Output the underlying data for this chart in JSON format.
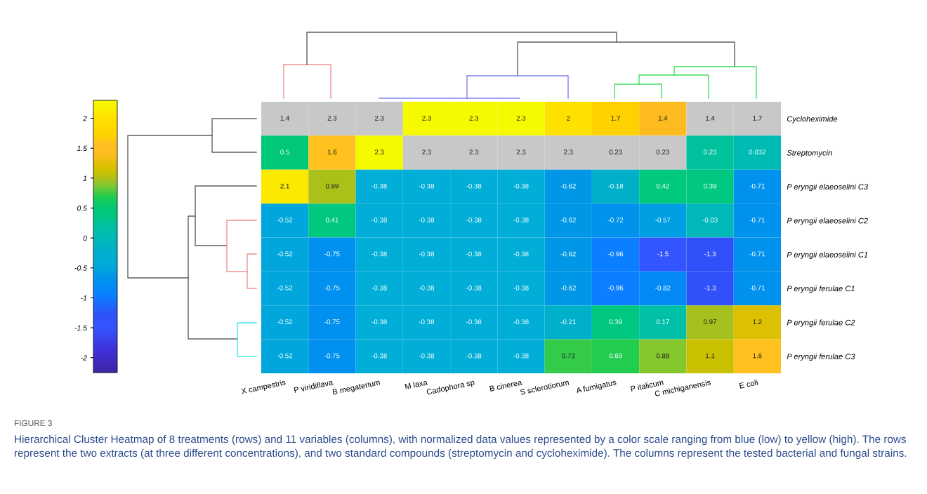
{
  "chart_data": {
    "type": "heatmap",
    "categories": [
      "X campestris",
      "P viridiflava",
      "B megaterium",
      "M laxa",
      "Cadophora sp",
      "B cinerea",
      "S sclerotiorum",
      "A fumigatus",
      "P italicum",
      "C michiganensis",
      "E coli"
    ],
    "y_categories": [
      "Cycloheximide",
      "Streptomycin",
      "P eryngii elaeoselini C3",
      "P eryngii elaeoselini C2",
      "P eryngii elaeoselini C1",
      "P eryngii ferulae C1",
      "P eryngii ferulae C2",
      "P eryngii ferulae C3"
    ],
    "cells": [
      [
        null,
        null,
        null,
        2.3,
        2.3,
        2.3,
        2,
        1.7,
        1.4,
        null,
        null
      ],
      [
        0.5,
        1.6,
        2.3,
        null,
        null,
        null,
        null,
        null,
        null,
        0.23,
        0.032
      ],
      [
        2.1,
        0.99,
        -0.38,
        -0.38,
        -0.38,
        -0.38,
        -0.62,
        -0.18,
        0.42,
        0.39,
        -0.71
      ],
      [
        -0.52,
        0.41,
        -0.38,
        -0.38,
        -0.38,
        -0.38,
        -0.62,
        -0.72,
        -0.57,
        -0.03,
        -0.71
      ],
      [
        -0.52,
        -0.75,
        -0.38,
        -0.38,
        -0.38,
        -0.38,
        -0.62,
        -0.96,
        -1.5,
        -1.3,
        -0.71
      ],
      [
        -0.52,
        -0.75,
        -0.38,
        -0.38,
        -0.38,
        -0.38,
        -0.62,
        -0.96,
        -0.82,
        -1.3,
        -0.71
      ],
      [
        -0.52,
        -0.75,
        -0.38,
        -0.38,
        -0.38,
        -0.38,
        -0.21,
        0.39,
        0.17,
        0.97,
        1.2
      ],
      [
        -0.52,
        -0.75,
        -0.38,
        -0.38,
        -0.38,
        -0.38,
        0.73,
        0.69,
        0.88,
        1.1,
        1.6
      ]
    ],
    "cell_labels": [
      [
        "1.4",
        "2.3",
        "2.3",
        "2.3",
        "2.3",
        "2.3",
        "2",
        "1.7",
        "1.4",
        "1.4",
        "1.7"
      ],
      [
        "0.5",
        "1.6",
        "2.3",
        "2.3",
        "2.3",
        "2.3",
        "2.3",
        "0.23",
        "0.23",
        "0.23",
        "0.032"
      ],
      [
        "2.1",
        "0.99",
        "-0.38",
        "-0.38",
        "-0.38",
        "-0.38",
        "-0.62",
        "-0.18",
        "0.42",
        "0.39",
        "-0.71"
      ],
      [
        "-0.52",
        "0.41",
        "-0.38",
        "-0.38",
        "-0.38",
        "-0.38",
        "-0.62",
        "-0.72",
        "-0.57",
        "-0.03",
        "-0.71"
      ],
      [
        "-0.52",
        "-0.75",
        "-0.38",
        "-0.38",
        "-0.38",
        "-0.38",
        "-0.62",
        "-0.96",
        "-1.5",
        "-1.3",
        "-0.71"
      ],
      [
        "-0.52",
        "-0.75",
        "-0.38",
        "-0.38",
        "-0.38",
        "-0.38",
        "-0.62",
        "-0.96",
        "-0.82",
        "-1.3",
        "-0.71"
      ],
      [
        "-0.52",
        "-0.75",
        "-0.38",
        "-0.38",
        "-0.38",
        "-0.38",
        "-0.21",
        "0.39",
        "0.17",
        "0.97",
        "1.2"
      ],
      [
        "-0.52",
        "-0.75",
        "-0.38",
        "-0.38",
        "-0.38",
        "-0.38",
        "0.73",
        "0.69",
        "0.88",
        "1.1",
        "1.6"
      ]
    ],
    "clim": [
      -2.25,
      2.3
    ],
    "cticks": [
      -2,
      -1.5,
      -1,
      -0.5,
      0,
      0.5,
      1,
      1.5,
      2
    ],
    "annotations": [
      "FIGURE 3",
      "Hierarchical Cluster Heatmap of 8 treatments (rows) and 11 variables (columns), with normalized data values represented by a color scale ranging from blue (low) to yellow (high). The rows represent the two extracts (at three different concentrations), and two standard compounds (streptomycin and cycloheximide). The columns represent the tested bacterial and fungal strains."
    ]
  }
}
